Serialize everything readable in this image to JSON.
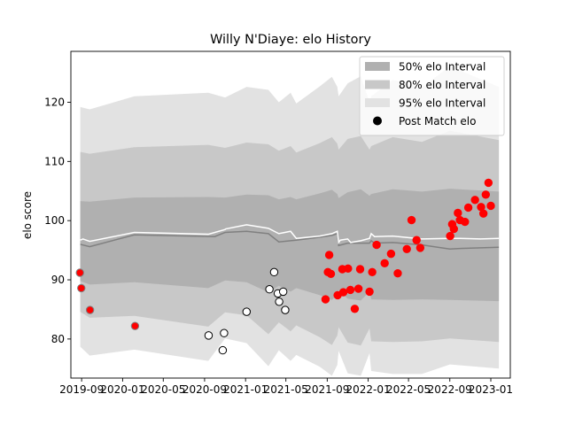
{
  "chart_data": {
    "type": "scatter",
    "title": "Willy N'Diaye: elo History",
    "xlabel": "",
    "ylabel": "elo score",
    "xlim": [
      "2019-07-31",
      "2023-02-28"
    ],
    "ylim": [
      73.4,
      128.6
    ],
    "x_ticks": [
      "2019-09",
      "2020-01",
      "2020-05",
      "2020-09",
      "2021-01",
      "2021-05",
      "2021-09",
      "2022-01",
      "2022-05",
      "2022-09",
      "2023-01"
    ],
    "y_ticks": [
      80,
      90,
      100,
      110,
      120
    ],
    "legend": {
      "position": "top-right",
      "items": [
        {
          "label": "50% elo Interval",
          "kind": "band",
          "color": "#b0b0b0"
        },
        {
          "label": "80% elo Interval",
          "kind": "band",
          "color": "#c8c8c8"
        },
        {
          "label": "95% elo Interval",
          "kind": "band",
          "color": "#e2e2e2"
        },
        {
          "label": "Post Match elo",
          "kind": "marker",
          "color": "#000000"
        }
      ]
    },
    "colors": {
      "band95": "#e2e2e2",
      "band80": "#c8c8c8",
      "band50": "#b0b0b0",
      "mean_line": "#ffffff",
      "median_line": "#808080",
      "point_win": "#ff0000",
      "point_loss": "#ffffff"
    },
    "series": [
      {
        "kind": "mean",
        "x": [
          "2019-08-28",
          "2019-09-05",
          "2019-09-25",
          "2020-02-05",
          "2020-09-12",
          "2020-11-01",
          "2020-11-03",
          "2021-01-04",
          "2021-03-10",
          "2021-04-10",
          "2021-05-15",
          "2021-06-01",
          "2021-08-10",
          "2021-09-15",
          "2021-10-01",
          "2021-10-05",
          "2021-10-10",
          "2021-11-01",
          "2021-11-10",
          "2021-12-10",
          "2022-01-05",
          "2022-01-10",
          "2022-01-20",
          "2022-03-15",
          "2022-06-10",
          "2022-09-01",
          "2022-10-01",
          "2022-12-01",
          "2023-01-25"
        ],
        "y": [
          96.7,
          96.9,
          96.5,
          98.0,
          97.7,
          98.5,
          98.6,
          99.3,
          98.7,
          97.8,
          98.2,
          97.0,
          97.4,
          97.8,
          98.2,
          96.3,
          96.7,
          96.9,
          96.3,
          96.6,
          97.0,
          97.8,
          97.3,
          97.4,
          96.9,
          97.0,
          97.0,
          96.9,
          97.0
        ]
      },
      {
        "kind": "median",
        "x": [
          "2019-08-28",
          "2019-09-25",
          "2020-02-05",
          "2020-10-01",
          "2020-11-01",
          "2021-01-04",
          "2021-03-10",
          "2021-04-10",
          "2021-05-15",
          "2021-06-01",
          "2021-08-10",
          "2021-09-15",
          "2021-10-01",
          "2021-10-05",
          "2021-11-01",
          "2022-01-05",
          "2022-01-10",
          "2022-01-20",
          "2022-03-15",
          "2022-06-10",
          "2022-09-01",
          "2022-10-01",
          "2023-01-25"
        ],
        "y": [
          96.0,
          95.6,
          97.6,
          97.3,
          98.0,
          98.2,
          97.8,
          96.4,
          96.6,
          96.7,
          97.2,
          97.5,
          97.8,
          95.8,
          96.2,
          96.2,
          96.6,
          96.2,
          96.3,
          95.9,
          95.2,
          95.3,
          95.5
        ]
      },
      {
        "kind": "band95",
        "x": [
          "2019-08-28",
          "2019-09-25",
          "2020-02-05",
          "2020-09-12",
          "2020-11-01",
          "2021-01-04",
          "2021-03-10",
          "2021-04-10",
          "2021-05-15",
          "2021-06-01",
          "2021-08-10",
          "2021-09-15",
          "2021-10-01",
          "2021-10-05",
          "2021-11-01",
          "2021-12-10",
          "2022-01-05",
          "2022-01-10",
          "2022-03-15",
          "2022-06-10",
          "2022-09-01",
          "2023-01-25"
        ],
        "upper": [
          119.2,
          118.8,
          121.0,
          121.6,
          120.8,
          122.6,
          122.1,
          120.0,
          121.6,
          119.8,
          122.7,
          124.3,
          122.6,
          121.0,
          123.2,
          124.4,
          120.0,
          121.0,
          123.8,
          122.5,
          126.1,
          122.6
        ],
        "lower": [
          78.7,
          77.2,
          78.2,
          76.3,
          80.1,
          79.3,
          75.4,
          78.1,
          76.3,
          77.3,
          75.3,
          73.8,
          75.6,
          78.0,
          74.2,
          73.8,
          77.6,
          74.6,
          74.1,
          74.1,
          75.7,
          75.0
        ]
      },
      {
        "kind": "band80",
        "x": [
          "2019-08-28",
          "2019-09-25",
          "2020-02-05",
          "2020-09-12",
          "2020-11-01",
          "2021-01-04",
          "2021-03-10",
          "2021-04-10",
          "2021-05-15",
          "2021-06-01",
          "2021-08-10",
          "2021-09-15",
          "2021-10-01",
          "2021-10-05",
          "2021-11-01",
          "2021-12-10",
          "2022-01-05",
          "2022-01-10",
          "2022-03-15",
          "2022-06-10",
          "2022-09-01",
          "2023-01-25"
        ],
        "upper": [
          111.6,
          111.3,
          112.4,
          112.8,
          112.3,
          113.2,
          112.9,
          111.8,
          112.6,
          111.5,
          113.1,
          114.1,
          113.0,
          112.0,
          113.8,
          114.3,
          112.0,
          112.6,
          114.1,
          113.3,
          115.2,
          113.6
        ],
        "lower": [
          84.6,
          83.6,
          83.9,
          82.1,
          84.5,
          84.0,
          80.8,
          82.8,
          81.3,
          82.3,
          80.3,
          79.0,
          80.6,
          82.0,
          79.4,
          78.9,
          81.8,
          79.6,
          79.5,
          79.6,
          80.1,
          79.5
        ]
      },
      {
        "kind": "band50",
        "x": [
          "2019-08-28",
          "2019-09-25",
          "2020-02-05",
          "2020-09-12",
          "2020-11-01",
          "2021-01-04",
          "2021-03-10",
          "2021-04-10",
          "2021-05-15",
          "2021-06-01",
          "2021-08-10",
          "2021-09-15",
          "2021-10-01",
          "2021-10-05",
          "2021-11-01",
          "2021-12-10",
          "2022-01-05",
          "2022-01-10",
          "2022-03-15",
          "2022-06-10",
          "2022-09-01",
          "2023-01-25"
        ],
        "upper": [
          103.3,
          103.2,
          103.9,
          104.0,
          103.9,
          104.4,
          104.3,
          103.6,
          104.0,
          103.6,
          104.6,
          105.2,
          104.5,
          103.8,
          104.8,
          105.3,
          104.2,
          104.5,
          105.3,
          104.9,
          105.4,
          104.9
        ],
        "lower": [
          89.8,
          89.2,
          89.6,
          88.6,
          89.9,
          89.6,
          87.9,
          89.0,
          88.0,
          88.6,
          87.4,
          86.6,
          87.5,
          88.2,
          86.8,
          86.5,
          88.0,
          86.7,
          86.6,
          86.7,
          86.6,
          86.4
        ]
      },
      {
        "kind": "post_match",
        "points": [
          {
            "x": "2019-08-27",
            "y": 91.2,
            "result": "loss",
            "prior": true
          },
          {
            "x": "2019-08-31",
            "y": 88.6,
            "result": "loss",
            "prior": true
          },
          {
            "x": "2019-09-26",
            "y": 84.9,
            "result": "loss",
            "prior": true
          },
          {
            "x": "2020-02-07",
            "y": 82.2,
            "result": "loss",
            "prior": true
          },
          {
            "x": "2020-09-13",
            "y": 80.6,
            "result": "loss"
          },
          {
            "x": "2020-10-25",
            "y": 78.1,
            "result": "loss"
          },
          {
            "x": "2020-10-29",
            "y": 81.0,
            "result": "loss"
          },
          {
            "x": "2021-01-04",
            "y": 84.6,
            "result": "loss"
          },
          {
            "x": "2021-03-13",
            "y": 88.4,
            "result": "loss"
          },
          {
            "x": "2021-03-27",
            "y": 91.3,
            "result": "loss"
          },
          {
            "x": "2021-04-07",
            "y": 87.7,
            "result": "loss"
          },
          {
            "x": "2021-04-11",
            "y": 86.3,
            "result": "loss"
          },
          {
            "x": "2021-04-23",
            "y": 88.0,
            "result": "loss"
          },
          {
            "x": "2021-04-29",
            "y": 84.9,
            "result": "loss"
          },
          {
            "x": "2021-08-27",
            "y": 86.7,
            "result": "win"
          },
          {
            "x": "2021-09-03",
            "y": 91.3,
            "result": "win"
          },
          {
            "x": "2021-09-07",
            "y": 94.2,
            "result": "win"
          },
          {
            "x": "2021-09-12",
            "y": 91.0,
            "result": "win"
          },
          {
            "x": "2021-10-02",
            "y": 87.4,
            "result": "win"
          },
          {
            "x": "2021-10-16",
            "y": 91.8,
            "result": "win"
          },
          {
            "x": "2021-10-19",
            "y": 87.9,
            "result": "win"
          },
          {
            "x": "2021-11-02",
            "y": 91.9,
            "result": "win"
          },
          {
            "x": "2021-11-09",
            "y": 88.3,
            "result": "win"
          },
          {
            "x": "2021-11-22",
            "y": 85.1,
            "result": "win"
          },
          {
            "x": "2021-12-03",
            "y": 88.5,
            "result": "win"
          },
          {
            "x": "2021-12-08",
            "y": 91.8,
            "result": "win"
          },
          {
            "x": "2022-01-05",
            "y": 88.0,
            "result": "win"
          },
          {
            "x": "2022-01-13",
            "y": 91.3,
            "result": "win"
          },
          {
            "x": "2022-01-26",
            "y": 95.9,
            "result": "win"
          },
          {
            "x": "2022-02-19",
            "y": 92.8,
            "result": "win"
          },
          {
            "x": "2022-03-10",
            "y": 94.4,
            "result": "win"
          },
          {
            "x": "2022-03-30",
            "y": 91.1,
            "result": "win"
          },
          {
            "x": "2022-04-26",
            "y": 95.2,
            "result": "win"
          },
          {
            "x": "2022-05-10",
            "y": 100.1,
            "result": "win"
          },
          {
            "x": "2022-05-25",
            "y": 96.7,
            "result": "win"
          },
          {
            "x": "2022-06-05",
            "y": 95.4,
            "result": "win"
          },
          {
            "x": "2022-09-02",
            "y": 97.4,
            "result": "win"
          },
          {
            "x": "2022-09-08",
            "y": 99.4,
            "result": "win"
          },
          {
            "x": "2022-09-13",
            "y": 98.6,
            "result": "win"
          },
          {
            "x": "2022-09-25",
            "y": 101.3,
            "result": "win"
          },
          {
            "x": "2022-10-01",
            "y": 100.1,
            "result": "win"
          },
          {
            "x": "2022-10-16",
            "y": 99.8,
            "result": "win"
          },
          {
            "x": "2022-10-26",
            "y": 102.2,
            "result": "win"
          },
          {
            "x": "2022-11-15",
            "y": 103.5,
            "result": "win"
          },
          {
            "x": "2022-12-03",
            "y": 102.3,
            "result": "win"
          },
          {
            "x": "2022-12-10",
            "y": 101.2,
            "result": "win"
          },
          {
            "x": "2022-12-17",
            "y": 104.4,
            "result": "win"
          },
          {
            "x": "2022-12-25",
            "y": 106.4,
            "result": "win"
          },
          {
            "x": "2023-01-01",
            "y": 102.5,
            "result": "win"
          }
        ]
      }
    ]
  }
}
